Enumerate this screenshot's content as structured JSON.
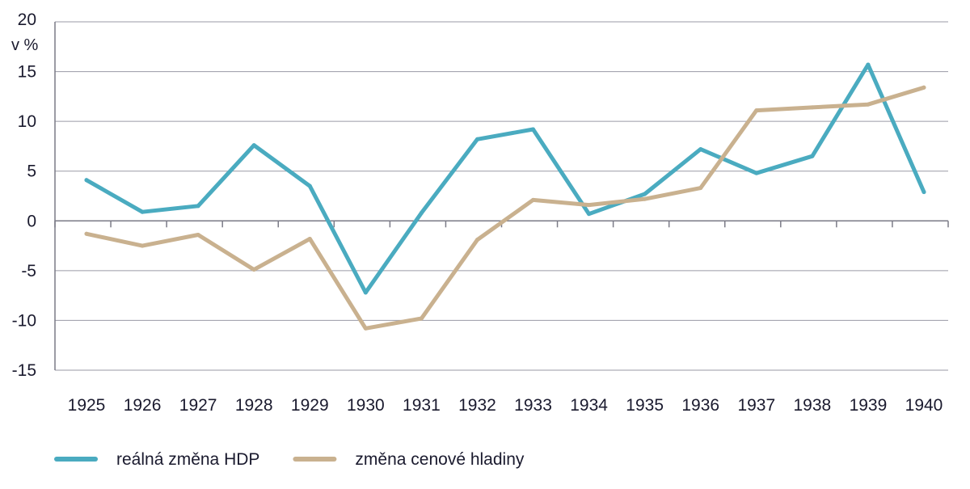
{
  "chart_data": {
    "type": "line",
    "unit_label": "v %",
    "x": [
      "1925",
      "1926",
      "1927",
      "1928",
      "1929",
      "1930",
      "1931",
      "1932",
      "1933",
      "1934",
      "1935",
      "1936",
      "1937",
      "1938",
      "1939",
      "1940"
    ],
    "ylim": [
      -15,
      20
    ],
    "yticks": [
      "20",
      "15",
      "10",
      "5",
      "0",
      "-5",
      "-10",
      "-15"
    ],
    "grid": true,
    "legend_position": "bottom-left",
    "series": [
      {
        "name": "reálná změna HDP",
        "color": "#4aabc0",
        "values": [
          4.1,
          0.9,
          1.5,
          7.6,
          3.5,
          -7.2,
          0.8,
          8.2,
          9.2,
          0.7,
          2.7,
          7.2,
          4.8,
          6.5,
          15.7,
          2.9
        ]
      },
      {
        "name": "změna cenové hladiny",
        "color": "#c9b18f",
        "values": [
          -1.3,
          -2.5,
          -1.4,
          -4.9,
          -1.8,
          -10.8,
          -9.8,
          -1.9,
          2.1,
          1.6,
          2.2,
          3.3,
          11.1,
          11.4,
          11.7,
          13.4
        ]
      }
    ]
  }
}
